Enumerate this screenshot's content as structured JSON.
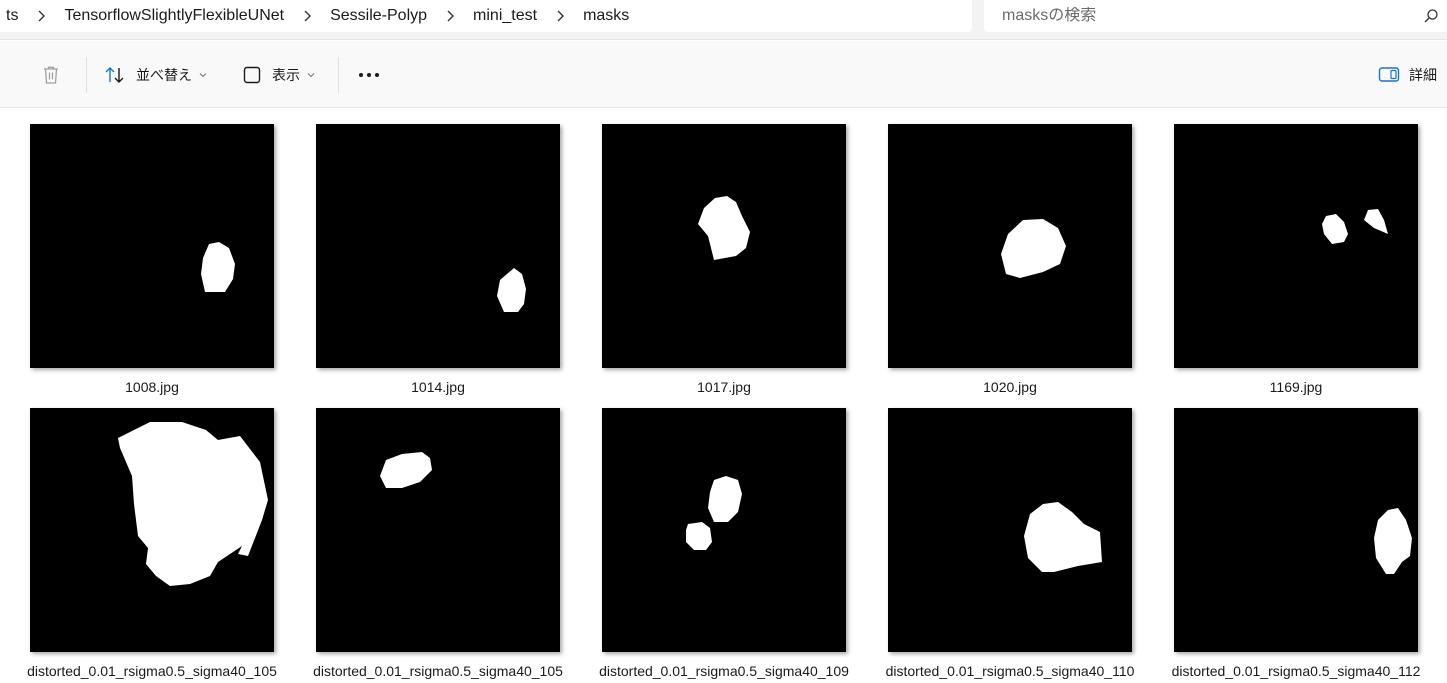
{
  "breadcrumb": {
    "items": [
      {
        "label": "ts"
      },
      {
        "label": "TensorflowSlightlyFlexibleUNet"
      },
      {
        "label": "Sessile-Polyp"
      },
      {
        "label": "mini_test"
      },
      {
        "label": "masks"
      }
    ]
  },
  "search": {
    "placeholder": "masksの検索",
    "icon": "search-icon"
  },
  "toolbar": {
    "sort_label": "並べ替え",
    "view_label": "表示",
    "details_label": "詳細",
    "accent_color": "#1a73c8"
  },
  "files": [
    {
      "name": "1008.jpg"
    },
    {
      "name": "1014.jpg"
    },
    {
      "name": "1017.jpg"
    },
    {
      "name": "1020.jpg"
    },
    {
      "name": "1169.jpg"
    },
    {
      "name": "distorted_0.01_rsigma0.5_sigma40_105"
    },
    {
      "name": "distorted_0.01_rsigma0.5_sigma40_105"
    },
    {
      "name": "distorted_0.01_rsigma0.5_sigma40_109"
    },
    {
      "name": "distorted_0.01_rsigma0.5_sigma40_110"
    },
    {
      "name": "distorted_0.01_rsigma0.5_sigma40_112"
    }
  ]
}
